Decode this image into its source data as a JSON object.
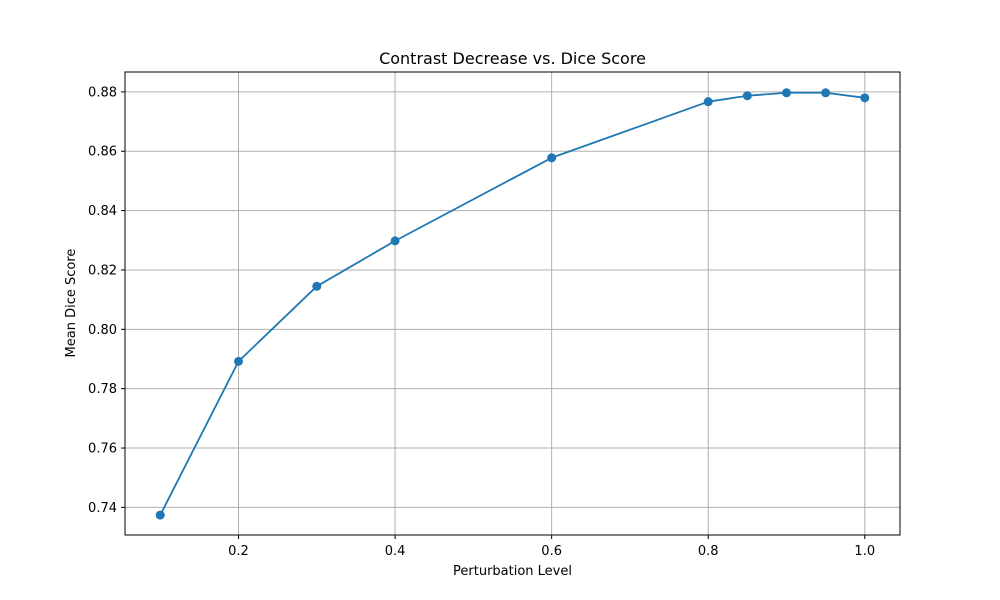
{
  "chart_data": {
    "type": "line",
    "title": "Contrast Decrease vs. Dice Score",
    "xlabel": "Perturbation Level",
    "ylabel": "Mean Dice Score",
    "x": [
      0.1,
      0.2,
      0.3,
      0.4,
      0.6,
      0.8,
      0.85,
      0.9,
      0.95,
      1.0
    ],
    "series": [
      {
        "values": [
          0.7374,
          0.7892,
          0.8145,
          0.8298,
          0.8578,
          0.8767,
          0.8787,
          0.8797,
          0.8797,
          0.878
        ],
        "color": "#1f77b4",
        "marker": "circle"
      }
    ],
    "xlim": [
      0.055,
      1.045
    ],
    "ylim": [
      0.7307,
      0.8867
    ],
    "xticks": [
      0.2,
      0.4,
      0.6,
      0.8,
      1.0
    ],
    "xtick_labels": [
      "0.2",
      "0.4",
      "0.6",
      "0.8",
      "1.0"
    ],
    "yticks": [
      0.74,
      0.76,
      0.78,
      0.8,
      0.82,
      0.84,
      0.86,
      0.88
    ],
    "ytick_labels": [
      "0.74",
      "0.76",
      "0.78",
      "0.80",
      "0.82",
      "0.84",
      "0.86",
      "0.88"
    ],
    "grid": true,
    "grid_color": "#b0b0b0"
  }
}
